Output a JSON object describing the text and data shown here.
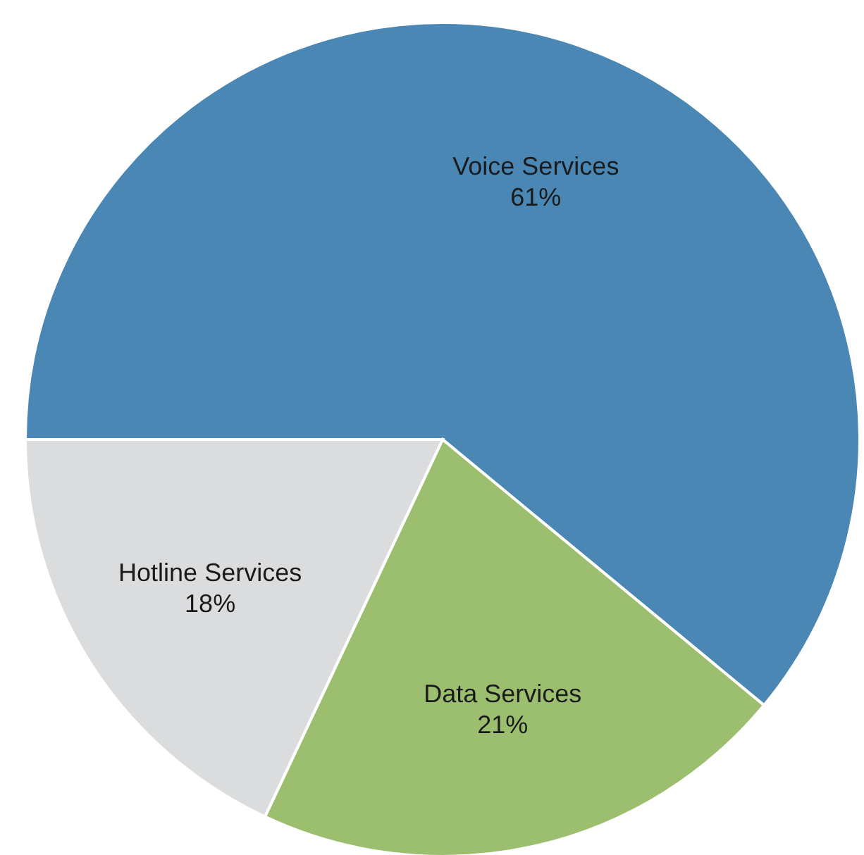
{
  "chart_data": {
    "type": "pie",
    "categories": [
      "Voice Services",
      "Data Services",
      "Hotline Services"
    ],
    "values": [
      61,
      21,
      18
    ],
    "value_labels": [
      "61%",
      "21%",
      "18%"
    ],
    "colors": [
      "#4a87b5",
      "#9cbf6f",
      "#dadcde"
    ]
  }
}
